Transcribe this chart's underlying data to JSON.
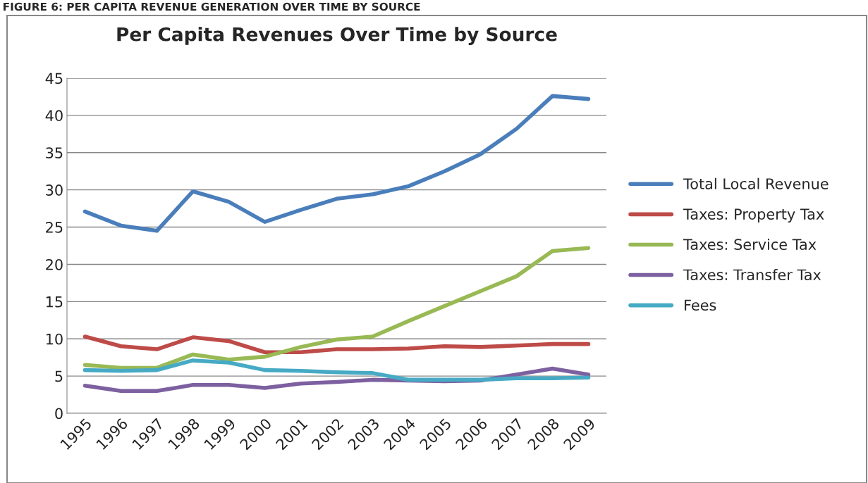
{
  "chart_data": {
    "type": "line",
    "title": "Per Capita Revenues Over Time by Source",
    "annotations": [
      "FIGURE 6: PER CAPITA REVENUE GENERATION OVER TIME BY SOURCE"
    ],
    "categories": [
      "1995",
      "1996",
      "1997",
      "1998",
      "1999",
      "2000",
      "2001",
      "2002",
      "2003",
      "2004",
      "2005",
      "2006",
      "2007",
      "2008",
      "2009"
    ],
    "series": [
      {
        "name": "Total Local Revenue",
        "color": "#4a7ebb",
        "values": [
          27.1,
          25.2,
          24.5,
          29.8,
          28.4,
          25.7,
          27.3,
          28.8,
          29.4,
          30.5,
          32.5,
          34.8,
          38.2,
          42.6,
          42.2
        ]
      },
      {
        "name": "Taxes: Property Tax",
        "color": "#be4b48",
        "values": [
          10.3,
          9.0,
          8.6,
          10.2,
          9.7,
          8.2,
          8.2,
          8.6,
          8.6,
          8.7,
          9.0,
          8.9,
          9.1,
          9.3,
          9.3
        ]
      },
      {
        "name": "Taxes: Service Tax",
        "color": "#98b954",
        "values": [
          6.5,
          6.1,
          6.1,
          7.9,
          7.2,
          7.6,
          8.9,
          9.9,
          10.3,
          12.4,
          14.4,
          16.4,
          18.4,
          21.8,
          22.2
        ]
      },
      {
        "name": "Taxes: Transfer Tax",
        "color": "#7d60a0",
        "values": [
          3.7,
          3.0,
          3.0,
          3.8,
          3.8,
          3.4,
          4.0,
          4.2,
          4.5,
          4.4,
          4.3,
          4.4,
          5.2,
          6.0,
          5.2
        ]
      },
      {
        "name": "Fees",
        "color": "#46aac5",
        "values": [
          5.8,
          5.7,
          5.8,
          7.1,
          6.8,
          5.8,
          5.7,
          5.5,
          5.4,
          4.5,
          4.5,
          4.5,
          4.7,
          4.7,
          4.8
        ]
      }
    ],
    "ylim": [
      0,
      45
    ],
    "yticks": [
      0,
      5,
      10,
      15,
      20,
      25,
      30,
      35,
      40,
      45
    ],
    "grid": "y",
    "legend": "right",
    "marker": "none",
    "line_style": "solid"
  }
}
